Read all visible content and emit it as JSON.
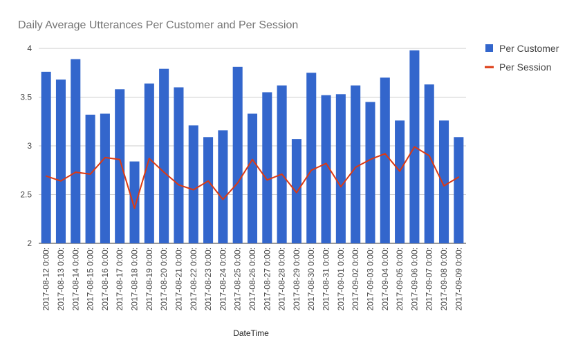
{
  "chart_data": {
    "type": "bar",
    "title": "Daily Average Utterances Per Customer and Per Session",
    "xlabel": "DateTime",
    "ylabel": "",
    "ylim": [
      2,
      4
    ],
    "yticks": [
      "2",
      "2.5",
      "3",
      "3.5",
      "4"
    ],
    "grid": true,
    "legend_position": "right",
    "categories": [
      "2017-08-12 0:00:",
      "2017-08-13 0:00:",
      "2017-08-14 0:00:",
      "2017-08-15 0:00:",
      "2017-08-16 0:00:",
      "2017-08-17 0:00:",
      "2017-08-18 0:00:",
      "2017-08-19 0:00:",
      "2017-08-20 0:00:",
      "2017-08-21 0:00:",
      "2017-08-22 0:00:",
      "2017-08-23 0:00:",
      "2017-08-24 0:00:",
      "2017-08-25 0:00:",
      "2017-08-26 0:00:",
      "2017-08-27 0:00:",
      "2017-08-28 0:00:",
      "2017-08-29 0:00:",
      "2017-08-30 0:00:",
      "2017-08-31 0:00:",
      "2017-09-01 0:00:",
      "2017-09-02 0:00:",
      "2017-09-03 0:00:",
      "2017-09-04 0:00:",
      "2017-09-05 0:00:",
      "2017-09-06 0:00:",
      "2017-09-07 0:00:",
      "2017-09-08 0:00:",
      "2017-09-09 0:00:"
    ],
    "series": [
      {
        "name": "Per Customer",
        "kind": "bar",
        "color": "#3366cc",
        "values": [
          3.76,
          3.68,
          3.89,
          3.32,
          3.33,
          3.58,
          2.84,
          3.64,
          3.79,
          3.6,
          3.21,
          3.09,
          3.16,
          3.81,
          3.33,
          3.55,
          3.62,
          3.07,
          3.75,
          3.52,
          3.53,
          3.62,
          3.45,
          3.7,
          3.26,
          3.98,
          3.63,
          3.26,
          3.09
        ]
      },
      {
        "name": "Per Session",
        "kind": "line",
        "color": "#dc3912",
        "values": [
          2.69,
          2.64,
          2.73,
          2.71,
          2.88,
          2.86,
          2.36,
          2.87,
          2.73,
          2.6,
          2.55,
          2.64,
          2.45,
          2.62,
          2.86,
          2.65,
          2.71,
          2.52,
          2.75,
          2.82,
          2.58,
          2.78,
          2.86,
          2.92,
          2.74,
          2.99,
          2.9,
          2.59,
          2.68
        ]
      }
    ]
  }
}
